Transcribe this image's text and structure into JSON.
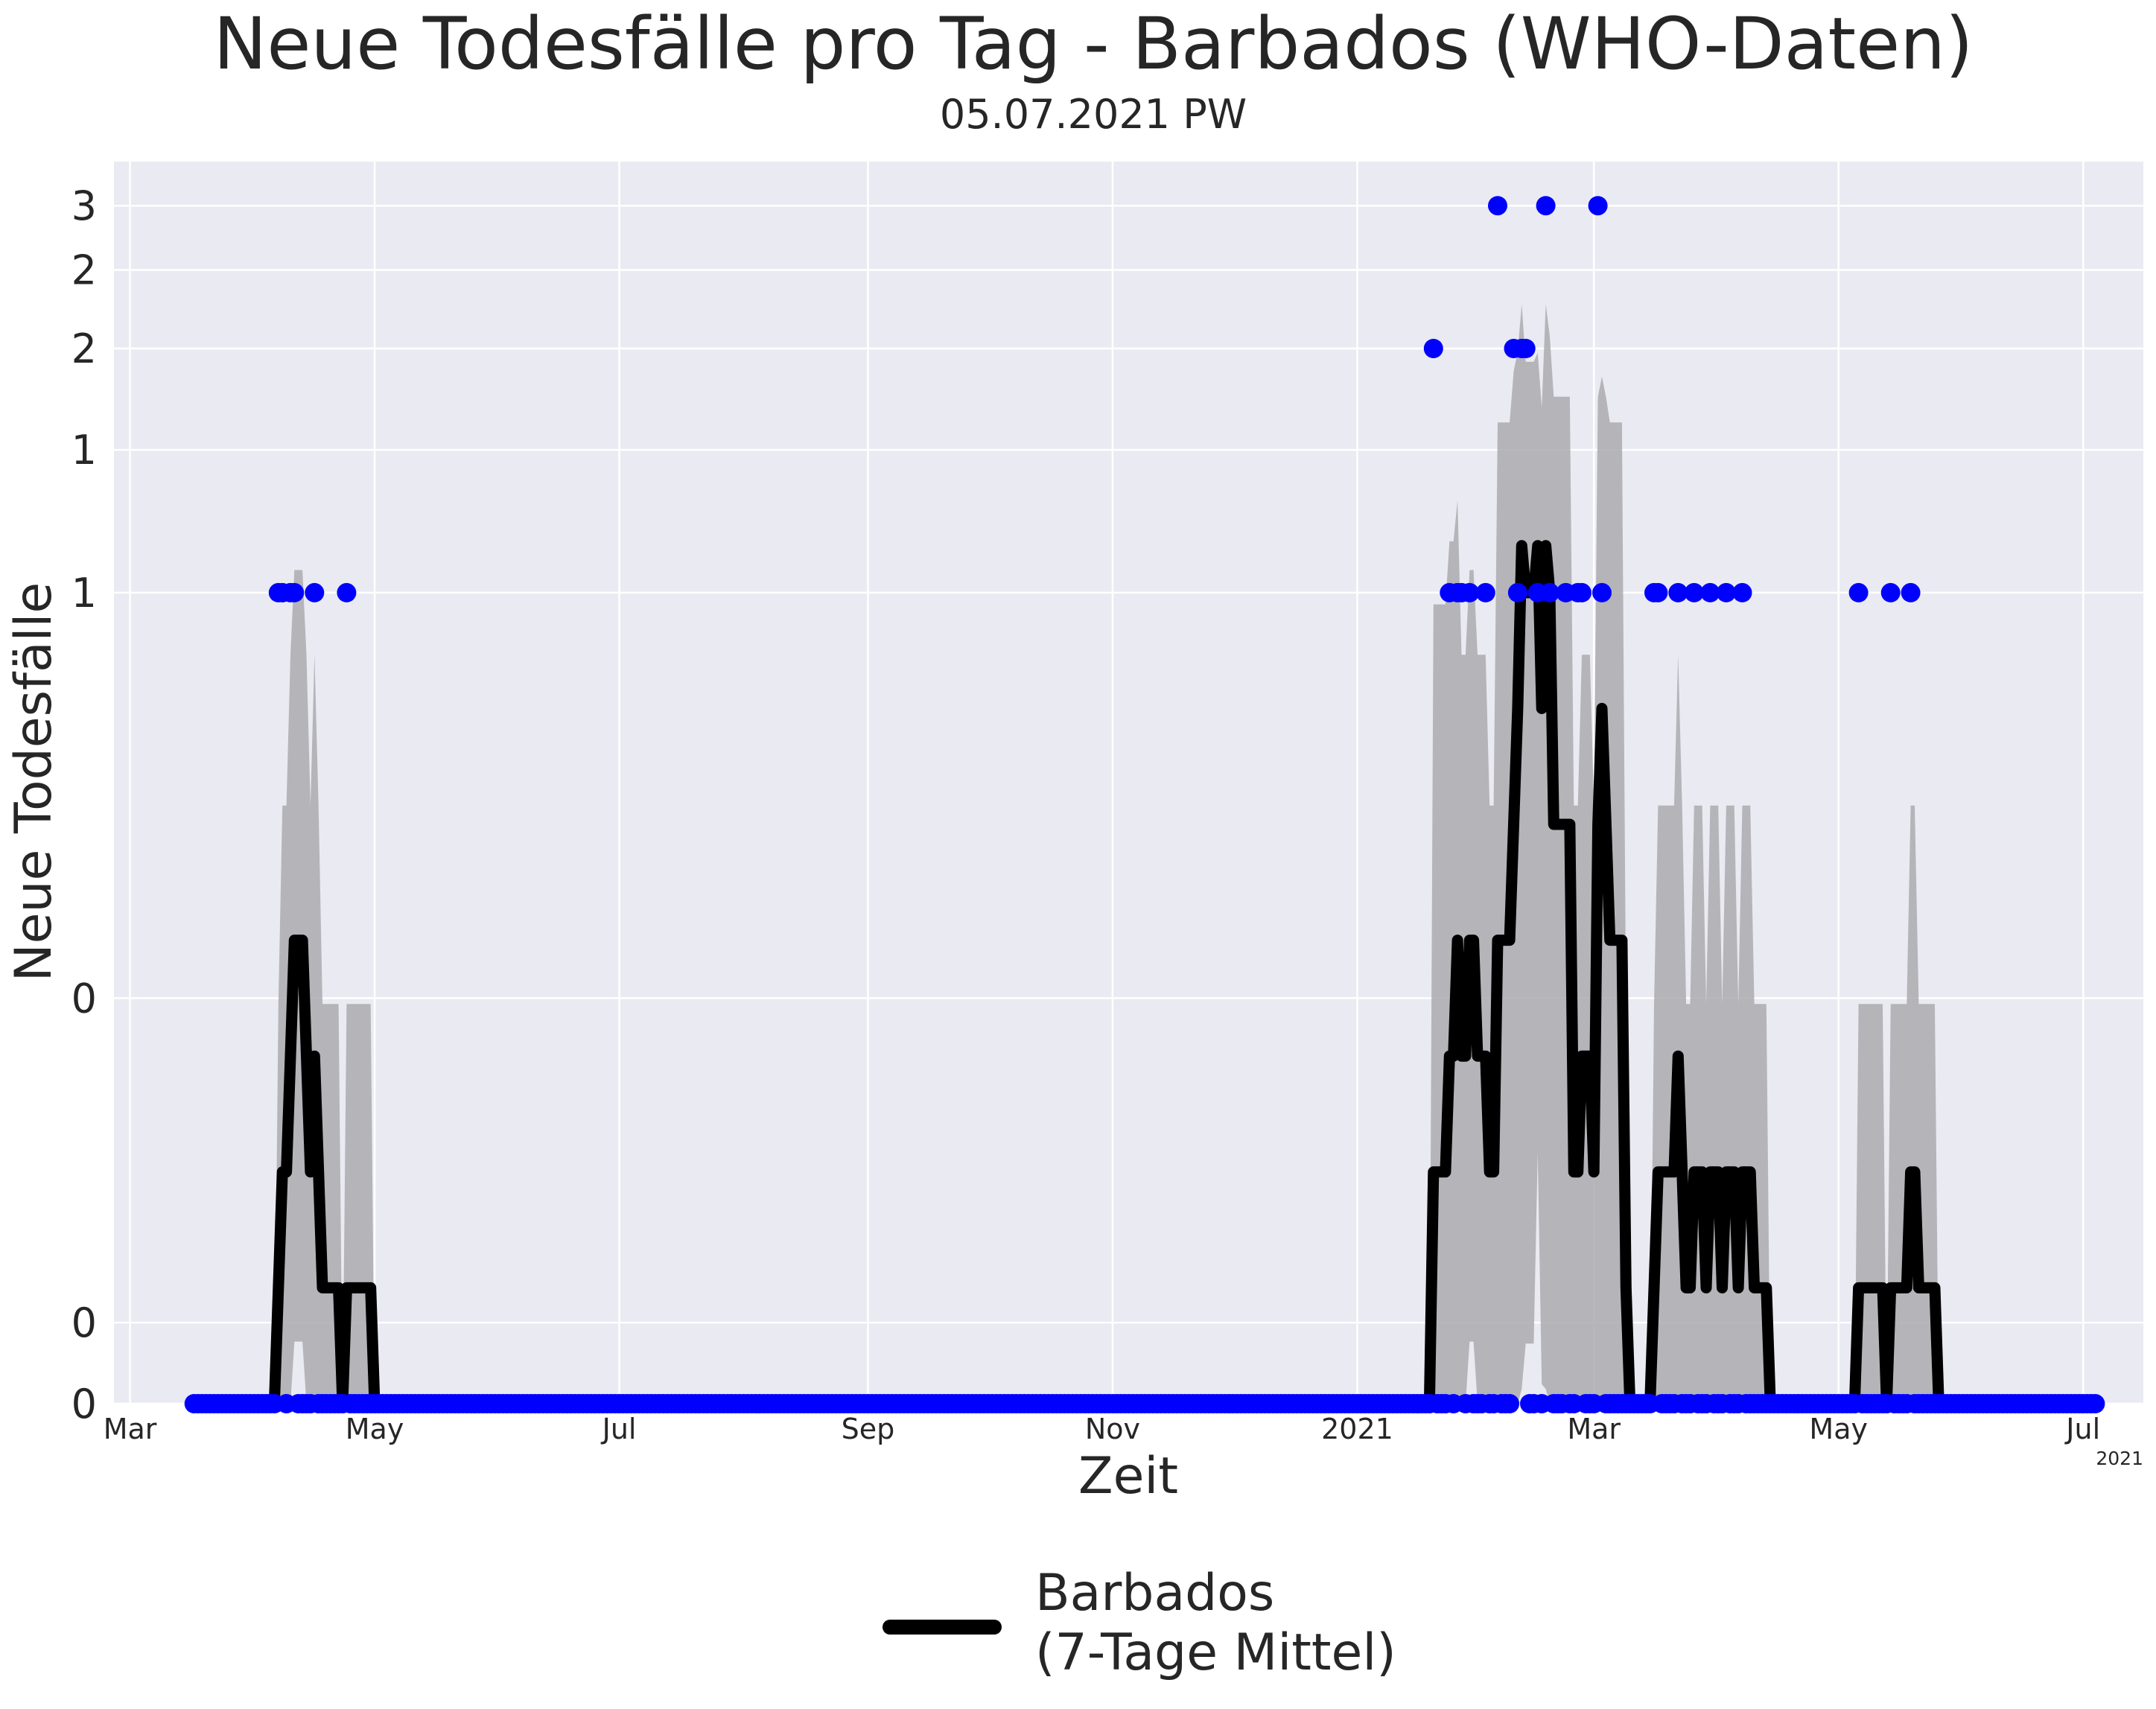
{
  "chart_data": {
    "type": "line",
    "title": "Neue Todesfälle pro Tag - Barbados (WHO-Daten)",
    "subtitle": "05.07.2021 PW",
    "xlabel": "Zeit",
    "ylabel": "Neue Todesfälle",
    "x_offset_label": "2021",
    "x_range": [
      "2020-02-26",
      "2021-07-16"
    ],
    "y_scale": "symlog",
    "y_range": [
      0,
      3.4
    ],
    "grid": true,
    "legend_position": "bottom-center",
    "x_ticks": [
      {
        "date": "2020-03-01",
        "label": "Mar"
      },
      {
        "date": "2020-05-01",
        "label": "May"
      },
      {
        "date": "2020-07-01",
        "label": "Jul"
      },
      {
        "date": "2020-09-01",
        "label": "Sep"
      },
      {
        "date": "2020-11-01",
        "label": "Nov"
      },
      {
        "date": "2021-01-01",
        "label": "2021"
      },
      {
        "date": "2021-03-01",
        "label": "Mar"
      },
      {
        "date": "2021-05-01",
        "label": "May"
      },
      {
        "date": "2021-07-01",
        "label": "Jul"
      }
    ],
    "y_ticks": [
      {
        "value": 0,
        "label": "0"
      },
      {
        "value": 0.1,
        "label": "0"
      },
      {
        "value": 0.5,
        "label": "0"
      },
      {
        "value": 1,
        "label": "1"
      },
      {
        "value": 1.5,
        "label": "1"
      },
      {
        "value": 2,
        "label": "2"
      },
      {
        "value": 2.5,
        "label": "2"
      },
      {
        "value": 3,
        "label": "3"
      }
    ],
    "colors": {
      "plot_bg": "#eaeaf2",
      "grid": "#ffffff",
      "points": "#0000ff",
      "mean_line": "#000000",
      "band": "#a8a8ac"
    },
    "daily_range": {
      "start": "2020-03-17",
      "end": "2021-07-04"
    },
    "daily_nonzero": [
      {
        "date": "2020-04-07",
        "value": 1
      },
      {
        "date": "2020-04-08",
        "value": 1
      },
      {
        "date": "2020-04-10",
        "value": 1
      },
      {
        "date": "2020-04-11",
        "value": 1
      },
      {
        "date": "2020-04-16",
        "value": 1
      },
      {
        "date": "2020-04-24",
        "value": 1
      },
      {
        "date": "2021-01-20",
        "value": 2
      },
      {
        "date": "2021-01-24",
        "value": 1
      },
      {
        "date": "2021-01-26",
        "value": 1
      },
      {
        "date": "2021-01-27",
        "value": 1
      },
      {
        "date": "2021-01-29",
        "value": 1
      },
      {
        "date": "2021-02-02",
        "value": 1
      },
      {
        "date": "2021-02-05",
        "value": 3
      },
      {
        "date": "2021-02-09",
        "value": 2
      },
      {
        "date": "2021-02-10",
        "value": 1
      },
      {
        "date": "2021-02-11",
        "value": 2
      },
      {
        "date": "2021-02-12",
        "value": 2
      },
      {
        "date": "2021-02-15",
        "value": 1
      },
      {
        "date": "2021-02-17",
        "value": 3
      },
      {
        "date": "2021-02-18",
        "value": 1
      },
      {
        "date": "2021-02-22",
        "value": 1
      },
      {
        "date": "2021-02-25",
        "value": 1
      },
      {
        "date": "2021-02-26",
        "value": 1
      },
      {
        "date": "2021-03-02",
        "value": 3
      },
      {
        "date": "2021-03-03",
        "value": 1
      },
      {
        "date": "2021-03-16",
        "value": 1
      },
      {
        "date": "2021-03-17",
        "value": 1
      },
      {
        "date": "2021-03-22",
        "value": 1
      },
      {
        "date": "2021-03-26",
        "value": 1
      },
      {
        "date": "2021-03-30",
        "value": 1
      },
      {
        "date": "2021-04-03",
        "value": 1
      },
      {
        "date": "2021-04-07",
        "value": 1
      },
      {
        "date": "2021-05-06",
        "value": 1
      },
      {
        "date": "2021-05-14",
        "value": 1
      },
      {
        "date": "2021-05-19",
        "value": 1
      }
    ],
    "series": [
      {
        "name": "Barbados\n(7-Tage Mittel)",
        "window_days": 7
      }
    ]
  },
  "legend": {
    "line1": "Barbados",
    "line2": "(7-Tage Mittel)"
  }
}
